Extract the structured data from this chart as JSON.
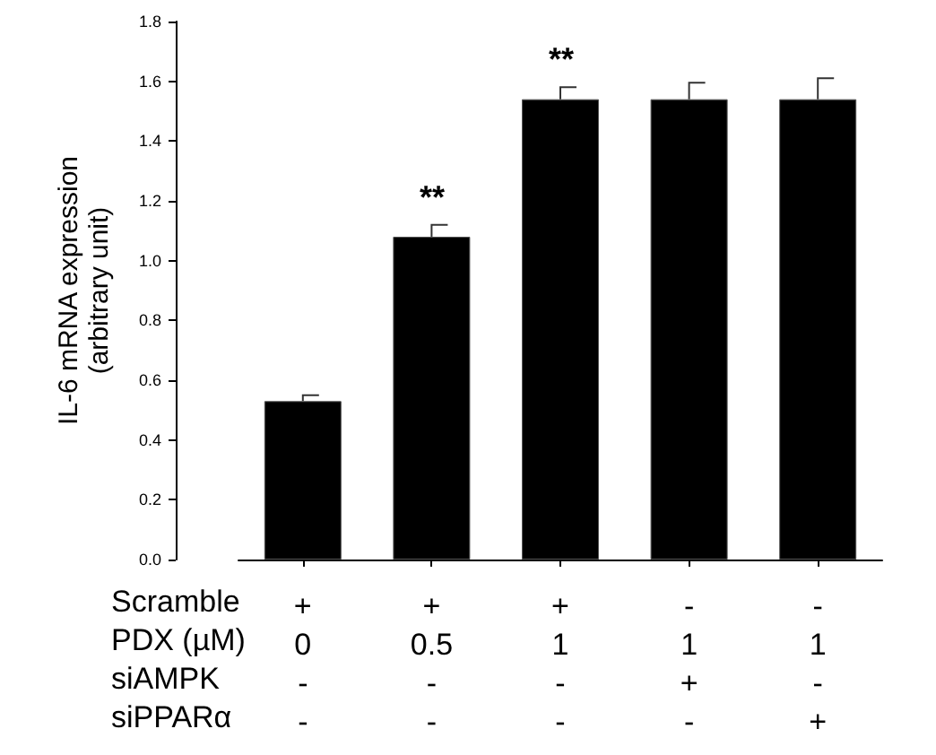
{
  "chart_data": {
    "type": "bar",
    "ylabel": "IL-6 mRNA expression\n(arbitrary unit)",
    "categories": [
      "+\n0\n-\n-",
      "+\n0.5\n-\n-",
      "+\n1\n-\n-",
      "-\n1\n+\n-",
      "-\n1\n-\n+"
    ],
    "values": [
      0.53,
      1.08,
      1.54,
      1.54,
      1.54
    ],
    "errors": [
      0.02,
      0.04,
      0.04,
      0.055,
      0.07
    ],
    "color": "#000000",
    "ylim": [
      0,
      1.8
    ],
    "yticks": [
      {
        "value": 0,
        "label": "0.0"
      },
      {
        "value": 0.2,
        "label": "0.2"
      },
      {
        "value": 0.4,
        "label": "0.4"
      },
      {
        "value": 0.6,
        "label": "0.6"
      },
      {
        "value": 0.8,
        "label": "0.8"
      },
      {
        "value": 1,
        "label": "1.0"
      },
      {
        "value": 1.2,
        "label": "1.2"
      },
      {
        "value": 1.4,
        "label": "1.4"
      },
      {
        "value": 1.6,
        "label": "1.6"
      },
      {
        "value": 1.8,
        "label": "1.8"
      }
    ],
    "annotations": [
      "**",
      "**",
      "Scramble",
      "PDX (µM)",
      "siAMPK",
      "siPPARα"
    ],
    "grid": false
  }
}
